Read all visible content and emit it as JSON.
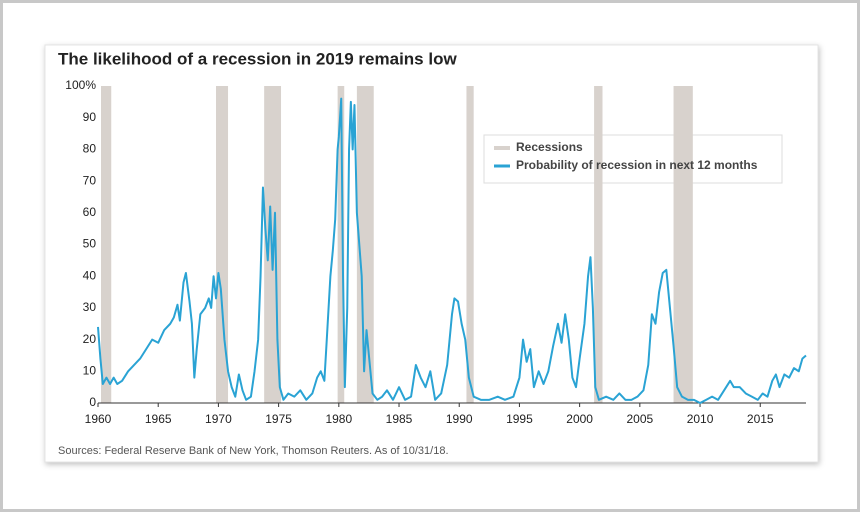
{
  "chart_data": {
    "type": "line",
    "title": "The likelihood of a recession in 2019 remains low",
    "source": "Sources: Federal Reserve Bank of New York, Thomson Reuters. As of 10/31/18.",
    "xlim": [
      1960,
      2018.8
    ],
    "xticks": [
      1960,
      1965,
      1970,
      1975,
      1980,
      1985,
      1990,
      1995,
      2000,
      2005,
      2010,
      2015
    ],
    "ylim": [
      0,
      100
    ],
    "yticks": [
      0,
      10,
      20,
      30,
      40,
      50,
      60,
      70,
      80,
      90,
      {
        "value": 100,
        "label": "100%"
      }
    ],
    "bands": {
      "name": "Recessions",
      "color": "#d8d2cd",
      "ranges": [
        [
          1960.25,
          1961.1
        ],
        [
          1969.8,
          1970.8
        ],
        [
          1973.8,
          1975.2
        ],
        [
          1979.9,
          1980.45
        ],
        [
          1981.5,
          1982.9
        ],
        [
          1990.6,
          1991.2
        ],
        [
          2001.2,
          2001.9
        ],
        [
          2007.8,
          2009.4
        ]
      ]
    },
    "series": [
      {
        "name": "Probability of recession in next 12 months",
        "color": "#2aa3d4",
        "x": [
          1960.0,
          1960.2,
          1960.4,
          1960.7,
          1961.0,
          1961.3,
          1961.6,
          1962.0,
          1962.5,
          1963.0,
          1963.5,
          1964.0,
          1964.5,
          1965.0,
          1965.5,
          1966.0,
          1966.3,
          1966.6,
          1966.8,
          1967.1,
          1967.3,
          1967.6,
          1967.8,
          1968.0,
          1968.2,
          1968.5,
          1968.9,
          1969.2,
          1969.4,
          1969.6,
          1969.8,
          1970.0,
          1970.2,
          1970.5,
          1970.8,
          1971.1,
          1971.4,
          1971.7,
          1972.0,
          1972.3,
          1972.7,
          1973.0,
          1973.3,
          1973.5,
          1973.7,
          1973.9,
          1974.1,
          1974.3,
          1974.5,
          1974.7,
          1974.9,
          1975.1,
          1975.4,
          1975.8,
          1976.3,
          1976.8,
          1977.3,
          1977.8,
          1978.2,
          1978.5,
          1978.8,
          1979.0,
          1979.3,
          1979.5,
          1979.7,
          1979.9,
          1980.0,
          1980.2,
          1980.35,
          1980.5,
          1980.7,
          1980.85,
          1981.0,
          1981.15,
          1981.3,
          1981.5,
          1981.7,
          1981.9,
          1982.1,
          1982.3,
          1982.5,
          1982.8,
          1983.2,
          1983.6,
          1984.0,
          1984.5,
          1985.0,
          1985.5,
          1986.0,
          1986.4,
          1986.8,
          1987.2,
          1987.6,
          1988.0,
          1988.5,
          1989.0,
          1989.4,
          1989.6,
          1989.9,
          1990.2,
          1990.5,
          1990.8,
          1991.2,
          1991.8,
          1992.5,
          1993.2,
          1993.8,
          1994.5,
          1995.0,
          1995.3,
          1995.6,
          1995.9,
          1996.2,
          1996.6,
          1997.0,
          1997.4,
          1997.8,
          1998.2,
          1998.5,
          1998.8,
          1999.1,
          1999.4,
          1999.7,
          2000.0,
          2000.4,
          2000.7,
          2000.9,
          2001.1,
          2001.3,
          2001.6,
          2002.2,
          2002.8,
          2003.3,
          2003.8,
          2004.3,
          2004.8,
          2005.3,
          2005.7,
          2006.0,
          2006.3,
          2006.6,
          2006.9,
          2007.2,
          2007.5,
          2007.8,
          2008.1,
          2008.5,
          2009.0,
          2009.5,
          2010.0,
          2010.5,
          2011.0,
          2011.5,
          2012.0,
          2012.5,
          2012.8,
          2013.3,
          2013.8,
          2014.3,
          2014.8,
          2015.2,
          2015.6,
          2016.0,
          2016.3,
          2016.6,
          2017.0,
          2017.4,
          2017.8,
          2018.2,
          2018.5,
          2018.8
        ],
        "values": [
          24,
          14,
          6,
          8,
          6,
          8,
          6,
          7,
          10,
          12,
          14,
          17,
          20,
          19,
          23,
          25,
          27,
          31,
          26,
          38,
          41,
          32,
          25,
          8,
          17,
          28,
          30,
          33,
          30,
          40,
          33,
          41,
          36,
          20,
          10,
          5,
          2,
          9,
          4,
          1,
          2,
          10,
          20,
          40,
          68,
          55,
          45,
          62,
          42,
          60,
          20,
          5,
          1,
          3,
          2,
          4,
          1,
          3,
          8,
          10,
          7,
          20,
          40,
          48,
          58,
          80,
          84,
          96,
          40,
          5,
          30,
          80,
          95,
          80,
          94,
          60,
          50,
          40,
          10,
          23,
          15,
          3,
          1,
          2,
          4,
          1,
          5,
          1,
          2,
          12,
          8,
          5,
          10,
          1,
          3,
          12,
          28,
          33,
          32,
          25,
          20,
          8,
          2,
          1,
          1,
          2,
          1,
          2,
          8,
          20,
          13,
          17,
          5,
          10,
          6,
          10,
          18,
          25,
          19,
          28,
          20,
          8,
          5,
          14,
          25,
          40,
          46,
          30,
          5,
          1,
          2,
          1,
          3,
          1,
          1,
          2,
          4,
          12,
          28,
          25,
          35,
          41,
          42,
          30,
          18,
          5,
          2,
          1,
          1,
          0,
          1,
          2,
          1,
          4,
          7,
          5,
          5,
          3,
          2,
          1,
          3,
          2,
          7,
          9,
          5,
          9,
          8,
          11,
          10,
          14,
          15
        ]
      }
    ]
  }
}
